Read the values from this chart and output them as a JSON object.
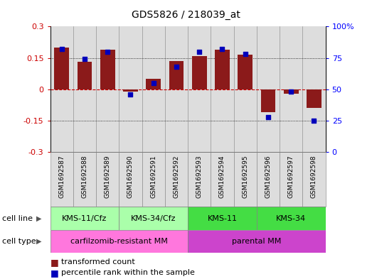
{
  "title": "GDS5826 / 218039_at",
  "samples": [
    "GSM1692587",
    "GSM1692588",
    "GSM1692589",
    "GSM1692590",
    "GSM1692591",
    "GSM1692592",
    "GSM1692593",
    "GSM1692594",
    "GSM1692595",
    "GSM1692596",
    "GSM1692597",
    "GSM1692598"
  ],
  "bar_values": [
    0.2,
    0.13,
    0.19,
    -0.01,
    0.05,
    0.135,
    0.16,
    0.19,
    0.165,
    -0.11,
    -0.02,
    -0.09
  ],
  "dot_values": [
    82,
    74,
    80,
    46,
    55,
    68,
    80,
    82,
    78,
    28,
    48,
    25
  ],
  "bar_color": "#8B1A1A",
  "dot_color": "#0000BB",
  "ylim_left": [
    -0.3,
    0.3
  ],
  "ylim_right": [
    0,
    100
  ],
  "yticks_left": [
    -0.3,
    -0.15,
    0.0,
    0.15,
    0.3
  ],
  "yticks_right": [
    0,
    25,
    50,
    75,
    100
  ],
  "ytick_labels_left": [
    "-0.3",
    "-0.15",
    "0",
    "0.15",
    "0.3"
  ],
  "ytick_labels_right": [
    "0",
    "25",
    "50",
    "75",
    "100%"
  ],
  "cell_line_groups": [
    {
      "label": "KMS-11/Cfz",
      "start": 0,
      "end": 3,
      "color": "#AAFFAA"
    },
    {
      "label": "KMS-34/Cfz",
      "start": 3,
      "end": 6,
      "color": "#AAFFAA"
    },
    {
      "label": "KMS-11",
      "start": 6,
      "end": 9,
      "color": "#44DD44"
    },
    {
      "label": "KMS-34",
      "start": 9,
      "end": 12,
      "color": "#44DD44"
    }
  ],
  "cell_type_groups": [
    {
      "label": "carfilzomib-resistant MM",
      "start": 0,
      "end": 6,
      "color": "#FF77DD"
    },
    {
      "label": "parental MM",
      "start": 6,
      "end": 12,
      "color": "#CC44CC"
    }
  ],
  "cell_line_label": "cell line",
  "cell_type_label": "cell type",
  "legend_bar": "transformed count",
  "legend_dot": "percentile rank within the sample",
  "bg_color": "#CCCCCC",
  "col_bg_color": "#DDDDDD"
}
